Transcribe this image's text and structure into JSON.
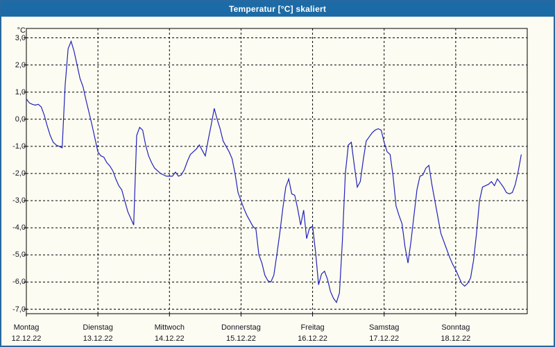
{
  "window": {
    "title": "Temperatur [°C] skaliert"
  },
  "colors": {
    "titlebar": "#1d6ba6",
    "frame": "#26689f",
    "line": "#2121bb",
    "grid": "#000000",
    "background": "#fcfcf2"
  },
  "chart_data": {
    "type": "line",
    "title": "Temperatur [°C] skaliert",
    "ylabel": "°C",
    "xlabel": "",
    "grid": "dashed",
    "legend": "none",
    "ylim": [
      -7.2,
      3.35
    ],
    "y_tick_values": [
      3,
      2,
      1,
      0,
      -1,
      -2,
      -3,
      -4,
      -5,
      -6,
      -7
    ],
    "y_tick_labels": [
      "3,0",
      "2,0",
      "1,0",
      "0,0",
      "-1,0",
      "-2,0",
      "-3,0",
      "-4,0",
      "-5,0",
      "-6,0",
      "-7,0"
    ],
    "days": [
      {
        "name": "Montag",
        "date": "12.12.22"
      },
      {
        "name": "Dienstag",
        "date": "13.12.22"
      },
      {
        "name": "Mittwoch",
        "date": "14.12.22"
      },
      {
        "name": "Donnerstag",
        "date": "15.12.22"
      },
      {
        "name": "Freitag",
        "date": "16.12.22"
      },
      {
        "name": "Samstag",
        "date": "17.12.22"
      },
      {
        "name": "Sonntag",
        "date": "18.12.22"
      }
    ],
    "sampling": "hourly",
    "series": [
      {
        "name": "Temperatur [°C] skaliert",
        "color": "#2121bb",
        "values": [
          0.75,
          0.6,
          0.55,
          0.52,
          0.55,
          0.45,
          0.15,
          -0.25,
          -0.6,
          -0.85,
          -0.95,
          -1.0,
          -1.05,
          1.25,
          2.6,
          2.87,
          2.5,
          2.0,
          1.5,
          1.2,
          0.7,
          0.25,
          -0.2,
          -0.7,
          -1.2,
          -1.35,
          -1.4,
          -1.6,
          -1.72,
          -1.9,
          -2.2,
          -2.45,
          -2.6,
          -3.0,
          -3.4,
          -3.65,
          -3.9,
          -0.6,
          -0.3,
          -0.4,
          -0.95,
          -1.35,
          -1.6,
          -1.8,
          -1.9,
          -2.0,
          -2.05,
          -2.1,
          -2.1,
          -2.1,
          -1.95,
          -2.1,
          -2.05,
          -1.85,
          -1.55,
          -1.3,
          -1.2,
          -1.1,
          -0.95,
          -1.15,
          -1.35,
          -0.75,
          -0.2,
          0.4,
          0.0,
          -0.35,
          -0.8,
          -1.0,
          -1.2,
          -1.45,
          -2.0,
          -2.7,
          -3.0,
          -3.3,
          -3.55,
          -3.75,
          -3.95,
          -4.05,
          -5.0,
          -5.3,
          -5.75,
          -5.95,
          -6.0,
          -5.75,
          -5.0,
          -4.2,
          -3.3,
          -2.5,
          -2.2,
          -2.75,
          -2.8,
          -3.3,
          -3.9,
          -3.35,
          -4.4,
          -4.0,
          -3.95,
          -4.9,
          -6.1,
          -5.7,
          -5.6,
          -5.9,
          -6.35,
          -6.6,
          -6.75,
          -6.4,
          -4.5,
          -2.0,
          -0.95,
          -0.85,
          -1.7,
          -2.5,
          -2.3,
          -1.5,
          -0.8,
          -0.65,
          -0.5,
          -0.4,
          -0.35,
          -0.4,
          -0.85,
          -1.2,
          -1.3,
          -2.1,
          -3.2,
          -3.55,
          -3.85,
          -4.7,
          -5.3,
          -4.5,
          -3.55,
          -2.6,
          -2.1,
          -2.05,
          -1.8,
          -1.7,
          -2.4,
          -3.0,
          -3.6,
          -4.2,
          -4.5,
          -4.8,
          -5.1,
          -5.35,
          -5.55,
          -5.8,
          -6.05,
          -6.15,
          -6.05,
          -5.85,
          -5.2,
          -4.2,
          -3.0,
          -2.5,
          -2.45,
          -2.4,
          -2.3,
          -2.45,
          -2.2,
          -2.35,
          -2.5,
          -2.7,
          -2.75,
          -2.7,
          -2.4,
          -1.9,
          -1.3
        ]
      }
    ]
  }
}
